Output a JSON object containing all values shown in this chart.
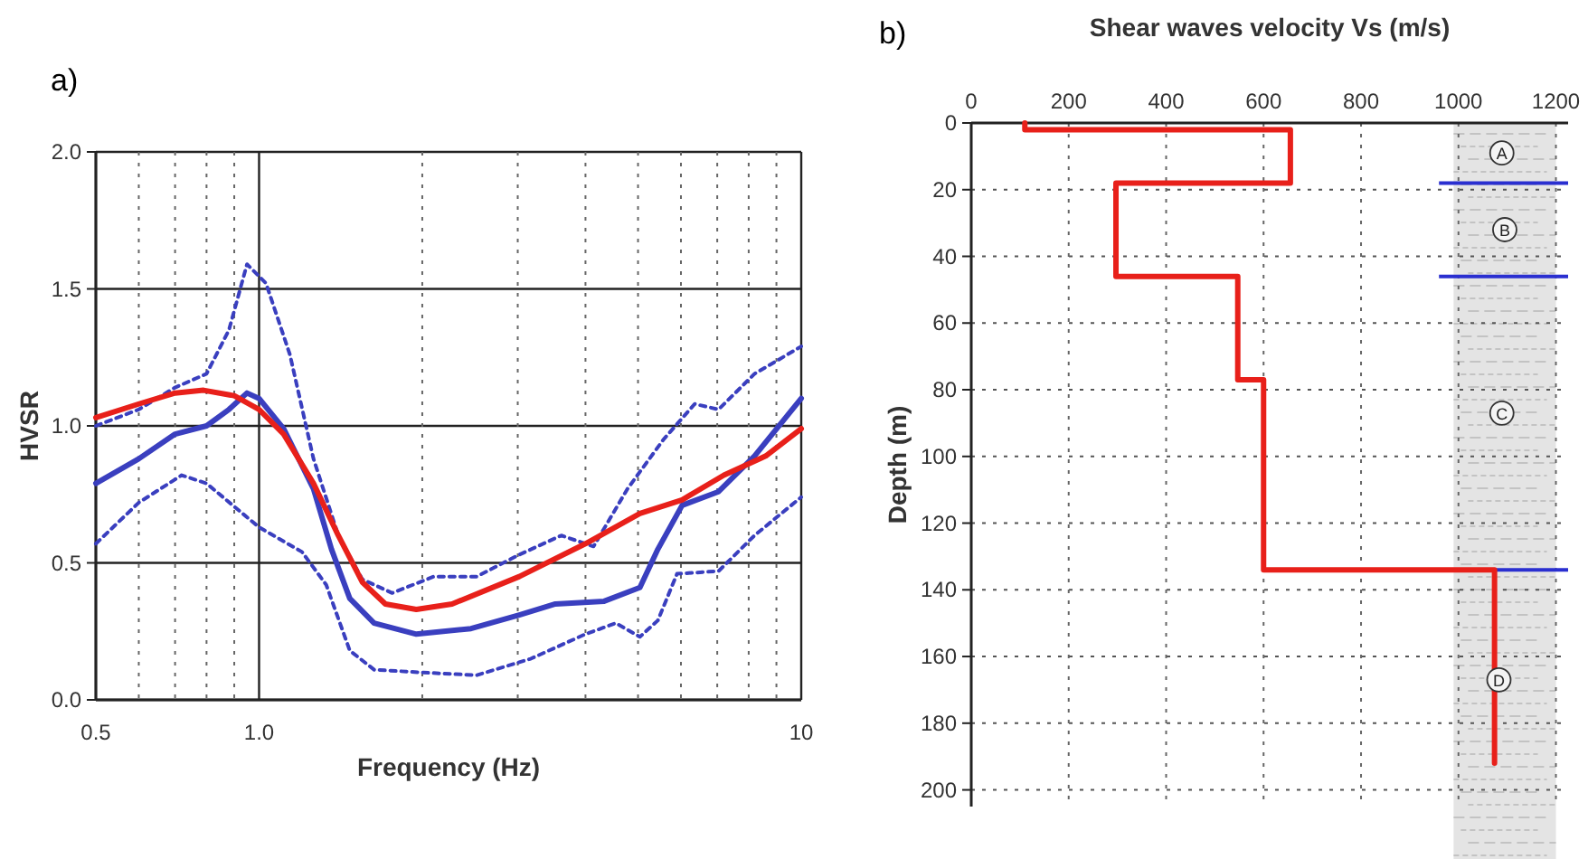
{
  "chart_data": [
    {
      "type": "line",
      "title": "a)",
      "xlabel": "Frequency (Hz)",
      "ylabel": "HVSR",
      "log": "x",
      "grid": true,
      "xlim": [
        0.5,
        10
      ],
      "ylim": [
        0,
        2
      ],
      "xticks": [
        0.5,
        {
          "value": 0.6,
          "label": null
        },
        {
          "value": 0.7,
          "label": null
        },
        {
          "value": 0.8,
          "label": null
        },
        {
          "value": 0.9,
          "label": null
        },
        {
          "value": 1,
          "label": "1.0"
        },
        {
          "value": 2,
          "label": null
        },
        {
          "value": 3,
          "label": null
        },
        {
          "value": 4,
          "label": null
        },
        {
          "value": 5,
          "label": null
        },
        {
          "value": 6,
          "label": null
        },
        {
          "value": 7,
          "label": null
        },
        {
          "value": 8,
          "label": null
        },
        {
          "value": 9,
          "label": null
        },
        10
      ],
      "yticks": [
        {
          "value": 0,
          "label": "0.0"
        },
        0.5,
        {
          "value": 1,
          "label": "1.0"
        },
        1.5,
        {
          "value": 2,
          "label": "2.0"
        }
      ],
      "series": [
        {
          "color": "#3a3fbf",
          "line_style": "dotted",
          "x": [
            0.5,
            0.6,
            0.7,
            0.8,
            0.88,
            0.95,
            1.03,
            1.14,
            1.26,
            1.4,
            1.55,
            1.76,
            2.1,
            2.52,
            3.02,
            3.61,
            4.14,
            4.78,
            5.57,
            6.36,
            7.04,
            8.2,
            10
          ],
          "values": [
            1.0,
            1.06,
            1.14,
            1.19,
            1.35,
            1.59,
            1.52,
            1.26,
            0.88,
            0.6,
            0.44,
            0.39,
            0.45,
            0.45,
            0.53,
            0.6,
            0.56,
            0.77,
            0.95,
            1.08,
            1.06,
            1.19,
            1.29
          ]
        },
        {
          "color": "#3a3fbf",
          "line_style": "dotted",
          "x": [
            0.5,
            0.6,
            0.72,
            0.8,
            1.0,
            1.2,
            1.33,
            1.47,
            1.63,
            2.0,
            2.52,
            3.17,
            4.0,
            4.55,
            5.04,
            5.44,
            5.9,
            7.04,
            8.2,
            10
          ],
          "values": [
            0.57,
            0.72,
            0.82,
            0.79,
            0.63,
            0.54,
            0.42,
            0.18,
            0.11,
            0.1,
            0.09,
            0.15,
            0.24,
            0.28,
            0.23,
            0.29,
            0.46,
            0.47,
            0.6,
            0.74
          ]
        },
        {
          "color": "#3a3fbf",
          "line_style": "solid",
          "x": [
            0.5,
            0.6,
            0.7,
            0.8,
            0.88,
            0.95,
            1.0,
            1.11,
            1.26,
            1.36,
            1.47,
            1.63,
            1.95,
            2.46,
            3.02,
            3.52,
            4.33,
            5.04,
            5.44,
            6.03,
            7.04,
            8.2,
            10
          ],
          "values": [
            0.79,
            0.88,
            0.97,
            1.0,
            1.06,
            1.12,
            1.1,
            0.99,
            0.77,
            0.55,
            0.37,
            0.28,
            0.24,
            0.26,
            0.31,
            0.35,
            0.36,
            0.41,
            0.55,
            0.71,
            0.76,
            0.89,
            1.1
          ]
        },
        {
          "color": "#e8201a",
          "line_style": "solid",
          "x": [
            0.5,
            0.6,
            0.7,
            0.79,
            0.9,
            1.0,
            1.11,
            1.26,
            1.4,
            1.55,
            1.71,
            1.95,
            2.27,
            3.02,
            4.0,
            5.04,
            6.03,
            7.2,
            8.6,
            10
          ],
          "values": [
            1.03,
            1.08,
            1.12,
            1.13,
            1.11,
            1.06,
            0.97,
            0.79,
            0.6,
            0.43,
            0.35,
            0.33,
            0.35,
            0.45,
            0.57,
            0.68,
            0.73,
            0.82,
            0.89,
            0.99
          ]
        }
      ]
    },
    {
      "type": "line",
      "title": "b)",
      "xlabel": "Shear waves velocity Vs (m/s)",
      "ylabel": "Depth (m)",
      "grid": true,
      "xlim": [
        0,
        1225
      ],
      "ylim": [
        205,
        0
      ],
      "xticks": [
        0,
        200,
        400,
        600,
        800,
        1000,
        1200
      ],
      "yticks": [
        0,
        20,
        40,
        60,
        80,
        100,
        120,
        140,
        160,
        180,
        200
      ],
      "series": [
        {
          "color": "#e8201a",
          "line_style": "solid",
          "x": [
            110,
            110,
            655,
            655,
            297,
            297,
            547,
            547,
            600,
            600,
            1074,
            1074
          ],
          "values": [
            0,
            2,
            2,
            18,
            18,
            46,
            46,
            77,
            77,
            134,
            134,
            192
          ]
        }
      ],
      "ref_lines": [
        {
          "axis": "y",
          "value": 18,
          "color": "#2a2fd0"
        },
        {
          "axis": "y",
          "value": 46,
          "color": "#2a2fd0"
        },
        {
          "axis": "y",
          "value": 134,
          "color": "#2a2fd0"
        }
      ],
      "annotations": [
        {
          "text": "A",
          "x": 1089,
          "y": 9
        },
        {
          "text": "B",
          "x": 1095,
          "y": 32
        },
        {
          "text": "C",
          "x": 1089,
          "y": 87
        },
        {
          "text": "D",
          "x": 1083,
          "y": 167
        }
      ]
    }
  ]
}
